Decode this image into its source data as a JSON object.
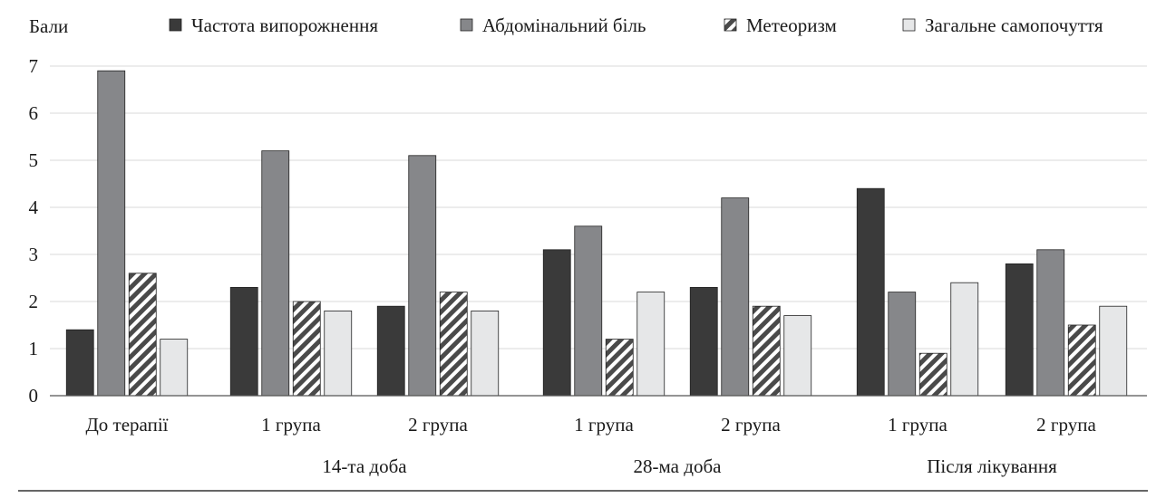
{
  "chart_data": {
    "type": "bar",
    "ylabel": "Бали",
    "ylim": [
      0,
      7
    ],
    "yticks": [
      0,
      1,
      2,
      3,
      4,
      5,
      6,
      7
    ],
    "grid": true,
    "legend_position": "top",
    "categories": [
      "До терапії",
      "1 група",
      "2 група",
      "1 група",
      "2 група",
      "1 група",
      "2 група"
    ],
    "category_groups": [
      {
        "label": "",
        "from": 0,
        "to": 0
      },
      {
        "label": "14-та доба",
        "from": 1,
        "to": 2
      },
      {
        "label": "28-ма доба",
        "from": 3,
        "to": 4
      },
      {
        "label": "Після лікування",
        "from": 5,
        "to": 6
      }
    ],
    "series": [
      {
        "name": "Частота випорожнення",
        "color": "#3a3a3a",
        "pattern": "solid",
        "values": [
          1.4,
          2.3,
          1.9,
          3.1,
          2.3,
          4.4,
          2.8
        ]
      },
      {
        "name": "Абдомінальний біль",
        "color": "#86878a",
        "pattern": "solid",
        "values": [
          6.9,
          5.2,
          5.1,
          3.6,
          4.2,
          2.2,
          3.1
        ]
      },
      {
        "name": "Метеоризм",
        "color": "#4a4a4a",
        "pattern": "hatch",
        "values": [
          2.6,
          2.0,
          2.2,
          1.2,
          1.9,
          0.9,
          1.5
        ]
      },
      {
        "name": "Загальне самопочуття",
        "color": "#e6e7e8",
        "pattern": "solid",
        "values": [
          1.2,
          1.8,
          1.8,
          2.2,
          1.7,
          2.4,
          1.9
        ]
      }
    ]
  }
}
